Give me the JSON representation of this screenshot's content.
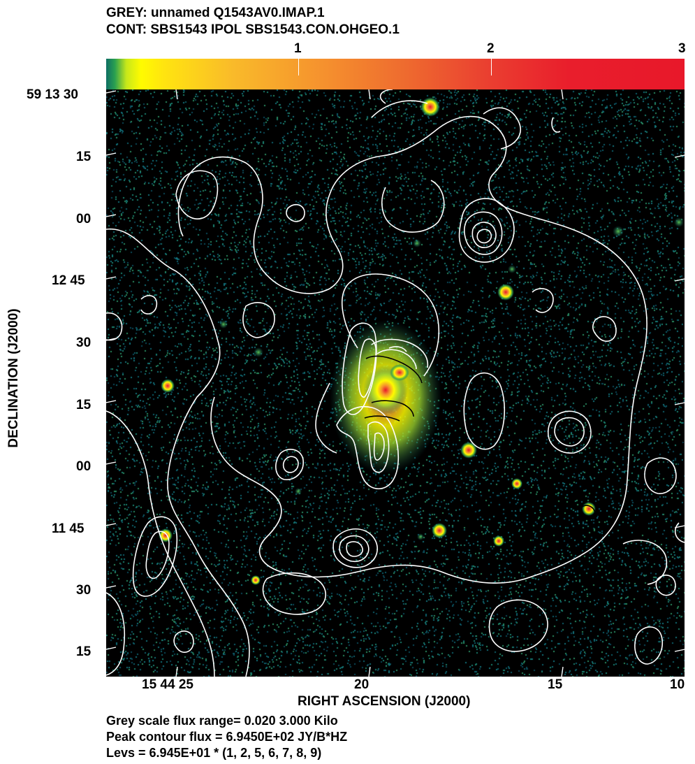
{
  "header": {
    "grey_line": "GREY: unnamed  Q1543AV0.IMAP.1",
    "cont_line": "CONT: SBS1543  IPOL  SBS1543.CON.OHGEO.1"
  },
  "colorbar": {
    "ticks": [
      "1",
      "2",
      "3"
    ],
    "range": [
      0.02,
      3.0
    ],
    "colors": [
      "#0e6e64",
      "#c7e81a",
      "#fffb00",
      "#f9ba2a",
      "#f5902e",
      "#ee6a2f",
      "#ea3f30",
      "#e8182a"
    ]
  },
  "axes": {
    "xlabel": "RIGHT ASCENSION (J2000)",
    "ylabel": "DECLINATION (J2000)",
    "x_ticks": [
      "15 44 25",
      "20",
      "15",
      "10"
    ],
    "y_ticks": [
      "59 13 30",
      "15",
      "00",
      "12 45",
      "30",
      "15",
      "00",
      "11 45",
      "30",
      "15"
    ]
  },
  "footer": {
    "flux_range": "Grey scale flux range= 0.020 3.000 Kilo",
    "peak": "Peak contour flux =  6.9450E+02 JY/B*HZ",
    "levels": "Levs = 6.945E+01 * (1, 2, 5, 6, 7, 8, 9)"
  },
  "image": {
    "background": "#000000",
    "contour_color": "#ffffff"
  }
}
